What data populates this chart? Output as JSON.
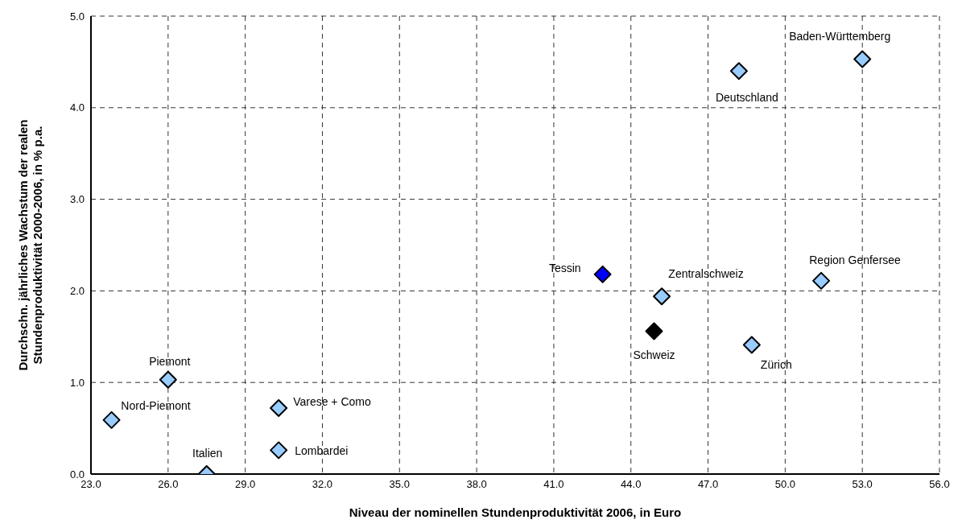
{
  "chart_data": {
    "type": "scatter",
    "xlabel": "Niveau der nominellen Stundenproduktivität 2006, in Euro",
    "ylabel": "Durchschn. jährliches Wachstum der realen\nStundenproduktivität 2000-2006, in % p.a.",
    "x": [
      23.8,
      26.0,
      27.5,
      30.3,
      30.3,
      42.9,
      45.2,
      44.9,
      48.7,
      51.4,
      48.2,
      53.0
    ],
    "series": [
      {
        "values": [
          0.59,
          1.03,
          0.0,
          0.72,
          0.26,
          2.18,
          1.94,
          1.56,
          1.41,
          2.11,
          4.4,
          4.53
        ],
        "colors": [
          "#99ccff",
          "#99ccff",
          "#99ccff",
          "#99ccff",
          "#99ccff",
          "#0000ff",
          "#99ccff",
          "#000000",
          "#99ccff",
          "#99ccff",
          "#99ccff",
          "#99ccff"
        ]
      }
    ],
    "annotations": [
      {
        "text": "Nord-Piemont",
        "x": 23.8,
        "y": 0.59
      },
      {
        "text": "Piemont",
        "x": 26.0,
        "y": 1.03
      },
      {
        "text": "Italien",
        "x": 27.5,
        "y": 0.0
      },
      {
        "text": "Varese + Como",
        "x": 30.3,
        "y": 0.72
      },
      {
        "text": "Lombardei",
        "x": 30.3,
        "y": 0.26
      },
      {
        "text": "Tessin",
        "x": 42.9,
        "y": 2.18
      },
      {
        "text": "Zentralschweiz",
        "x": 45.2,
        "y": 1.94
      },
      {
        "text": "Schweiz",
        "x": 44.9,
        "y": 1.56
      },
      {
        "text": "Zürich",
        "x": 48.7,
        "y": 1.41
      },
      {
        "text": "Region Genfersee",
        "x": 51.4,
        "y": 2.11
      },
      {
        "text": "Deutschland",
        "x": 48.2,
        "y": 4.4
      },
      {
        "text": "Baden-Württemberg",
        "x": 53.0,
        "y": 4.53
      }
    ],
    "xlim": [
      23,
      56
    ],
    "xticks": [
      {
        "value": 23,
        "label": "23.0"
      },
      {
        "value": 26,
        "label": "26.0"
      },
      {
        "value": 29,
        "label": "29.0"
      },
      {
        "value": 32,
        "label": "32.0"
      },
      {
        "value": 35,
        "label": "35.0"
      },
      {
        "value": 38,
        "label": "38.0"
      },
      {
        "value": 41,
        "label": "41.0"
      },
      {
        "value": 44,
        "label": "44.0"
      },
      {
        "value": 47,
        "label": "47.0"
      },
      {
        "value": 50,
        "label": "50.0"
      },
      {
        "value": 53,
        "label": "53.0"
      },
      {
        "value": 56,
        "label": "56.0"
      }
    ],
    "ylim": [
      0,
      5
    ],
    "yticks": [
      {
        "value": 0,
        "label": "0.0"
      },
      {
        "value": 1,
        "label": "1.0"
      },
      {
        "value": 2,
        "label": "2.0"
      },
      {
        "value": 3,
        "label": "3.0"
      },
      {
        "value": 4,
        "label": "4.0"
      },
      {
        "value": 5,
        "label": "5.0"
      }
    ],
    "grid": true,
    "marker": "diamond",
    "legend": false
  }
}
